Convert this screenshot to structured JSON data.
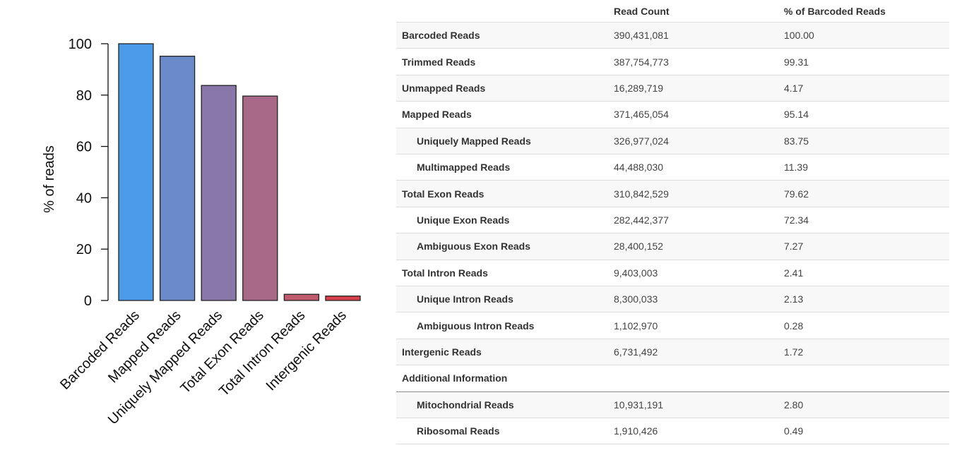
{
  "colors": {
    "bar_fills": [
      "#4c9be8",
      "#6a8ac9",
      "#8977a9",
      "#a86888",
      "#c05a6d",
      "#d8404c"
    ],
    "stripe": "#f8f8f8",
    "divider": "#dcdcdc"
  },
  "chart_data": {
    "type": "bar",
    "categories": [
      "Barcoded Reads",
      "Mapped Reads",
      "Uniquely Mapped Reads",
      "Total Exon Reads",
      "Total Intron Reads",
      "Intergenic Reads"
    ],
    "values": [
      100.0,
      95.14,
      83.75,
      79.62,
      2.41,
      1.72
    ],
    "ylabel": "% of reads",
    "xlabel": "",
    "ylim": [
      0,
      100
    ],
    "yticks": [
      0,
      20,
      40,
      60,
      80,
      100
    ],
    "grid": false,
    "legend": "none"
  },
  "table": {
    "headers": [
      "",
      "Read Count",
      "% of Barcoded Reads"
    ],
    "rows": [
      {
        "label": "Barcoded Reads",
        "count": "390,431,081",
        "pct": "100.00",
        "indent": false
      },
      {
        "label": "Trimmed Reads",
        "count": "387,754,773",
        "pct": "99.31",
        "indent": false
      },
      {
        "label": "Unmapped Reads",
        "count": "16,289,719",
        "pct": "4.17",
        "indent": false
      },
      {
        "label": "Mapped Reads",
        "count": "371,465,054",
        "pct": "95.14",
        "indent": false
      },
      {
        "label": "Uniquely Mapped Reads",
        "count": "326,977,024",
        "pct": "83.75",
        "indent": true
      },
      {
        "label": "Multimapped Reads",
        "count": "44,488,030",
        "pct": "11.39",
        "indent": true
      },
      {
        "label": "Total Exon Reads",
        "count": "310,842,529",
        "pct": "79.62",
        "indent": false
      },
      {
        "label": "Unique Exon Reads",
        "count": "282,442,377",
        "pct": "72.34",
        "indent": true
      },
      {
        "label": "Ambiguous Exon Reads",
        "count": "28,400,152",
        "pct": "7.27",
        "indent": true
      },
      {
        "label": "Total Intron Reads",
        "count": "9,403,003",
        "pct": "2.41",
        "indent": false
      },
      {
        "label": "Unique Intron Reads",
        "count": "8,300,033",
        "pct": "2.13",
        "indent": true
      },
      {
        "label": "Ambiguous Intron Reads",
        "count": "1,102,970",
        "pct": "0.28",
        "indent": true
      },
      {
        "label": "Intergenic Reads",
        "count": "6,731,492",
        "pct": "1.72",
        "indent": false
      },
      {
        "label": "Additional Information",
        "count": "",
        "pct": "",
        "indent": false,
        "section": true
      },
      {
        "label": "Mitochondrial Reads",
        "count": "10,931,191",
        "pct": "2.80",
        "indent": true
      },
      {
        "label": "Ribosomal Reads",
        "count": "1,910,426",
        "pct": "0.49",
        "indent": true
      }
    ]
  }
}
